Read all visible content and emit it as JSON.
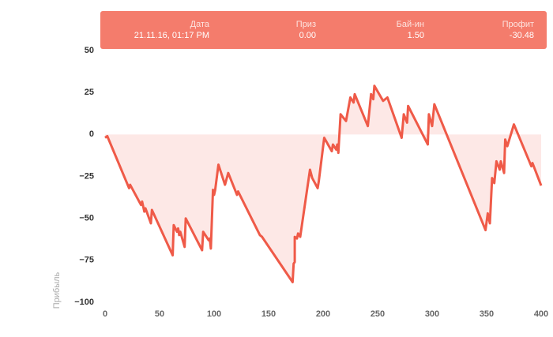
{
  "chart_data": {
    "type": "line",
    "ylabel": "Прибыль",
    "color": "#ef5a48",
    "fill_color": "#fde8e6",
    "x": [
      0,
      2,
      22,
      23,
      33,
      34,
      36,
      37,
      42,
      43,
      62,
      63,
      66,
      67,
      68,
      69,
      73,
      74,
      89,
      90,
      95,
      96,
      97,
      99,
      100,
      101,
      104,
      110,
      113,
      121,
      122,
      142,
      144,
      172,
      173,
      174,
      174,
      176,
      177,
      179,
      188,
      190,
      195,
      196,
      201,
      208,
      209,
      212,
      213,
      214,
      216,
      221,
      225,
      228,
      229,
      241,
      244,
      246,
      247,
      255,
      259,
      272,
      274,
      277,
      278,
      296,
      297,
      300,
      302,
      349,
      351,
      353,
      355,
      357,
      359,
      362,
      363,
      366,
      367,
      369,
      375,
      391,
      392,
      400
    ],
    "values": [
      -2,
      -1,
      -32,
      -30,
      -42,
      -40,
      -46,
      -44,
      -53,
      -45,
      -72,
      -54,
      -58,
      -56,
      -60,
      -58,
      -67,
      -50,
      -69,
      -58,
      -63,
      -62,
      -68,
      -33,
      -36,
      -33,
      -18,
      -30,
      -23,
      -36,
      -34,
      -60,
      -61,
      -88,
      -77,
      -76,
      -61,
      -62,
      -59,
      -61,
      -21,
      -26,
      -32,
      -28,
      -2,
      -10,
      -6,
      -9,
      -6,
      -11,
      12,
      8,
      22,
      19,
      24,
      5,
      24,
      21,
      29,
      20,
      22,
      -2,
      12,
      7,
      17,
      -6,
      12,
      5,
      18,
      -57,
      -47,
      -53,
      -26,
      -29,
      -16,
      -21,
      -16,
      -23,
      -3,
      -7,
      6,
      -19,
      -17,
      -30.48
    ],
    "xlim": [
      0,
      400
    ],
    "xticks": [
      0,
      50,
      100,
      150,
      200,
      250,
      300,
      350,
      400
    ],
    "ylim": [
      -100,
      50
    ],
    "yticks": [
      {
        "value": -100,
        "label": "−100"
      },
      {
        "value": -75,
        "label": "−75"
      },
      {
        "value": -50,
        "label": "−50"
      },
      {
        "value": -25,
        "label": "−25"
      },
      0,
      25,
      50
    ],
    "grid": false,
    "tooltip": {
      "color": "#f47c6c",
      "columns": [
        {
          "label": "Дата",
          "value": "21.11.16, 01:17 PM"
        },
        {
          "label": "Приз",
          "value": "0.00"
        },
        {
          "label": "Бай-ин",
          "value": "1.50"
        },
        {
          "label": "Профит",
          "value": "-30.48"
        }
      ]
    }
  }
}
